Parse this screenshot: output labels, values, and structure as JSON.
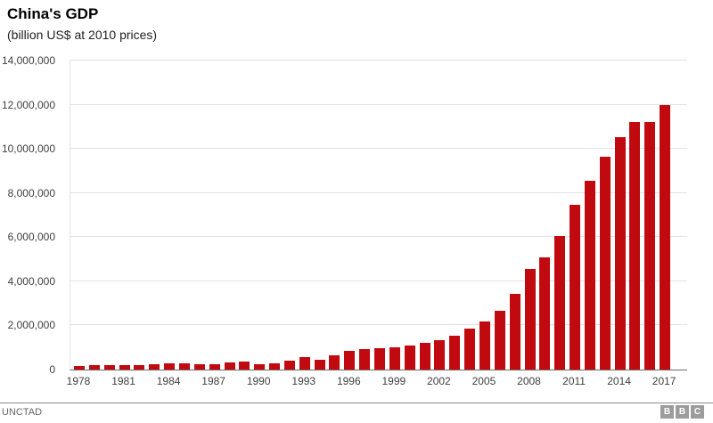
{
  "header": {
    "title": "China's GDP",
    "subtitle": "(billion US$ at 2010 prices)"
  },
  "footer": {
    "source": "UNCTAD",
    "logo_blocks": [
      "B",
      "B",
      "C"
    ]
  },
  "chart_data": {
    "type": "bar",
    "title": "China's GDP",
    "subtitle": "(billion US$ at 2010 prices)",
    "xlabel": "",
    "ylabel": "",
    "ylim": [
      0,
      14000000
    ],
    "ytick_interval": 2000000,
    "ytick_labels": [
      "0",
      "2,000,000",
      "4,000,000",
      "6,000,000",
      "8,000,000",
      "10,000,000",
      "12,000,000",
      "14,000,000"
    ],
    "xtick_years": [
      1978,
      1981,
      1984,
      1987,
      1990,
      1993,
      1996,
      1999,
      2002,
      2005,
      2008,
      2011,
      2014,
      2017
    ],
    "grid": true,
    "legend": "none",
    "bar_color": "#c00a10",
    "grid_color": "#e3e3e3",
    "axis_label_color": "#404040",
    "source": "UNCTAD",
    "categories": [
      1978,
      1979,
      1980,
      1981,
      1982,
      1983,
      1984,
      1985,
      1986,
      1987,
      1988,
      1989,
      1990,
      1991,
      1992,
      1993,
      1994,
      1995,
      1996,
      1997,
      1998,
      1999,
      2000,
      2001,
      2002,
      2003,
      2004,
      2005,
      2006,
      2007,
      2008,
      2009,
      2010,
      2011,
      2012,
      2013,
      2014,
      2015,
      2016,
      2017
    ],
    "values": [
      175000,
      200000,
      215000,
      205000,
      220000,
      240000,
      270000,
      275000,
      250000,
      225000,
      330000,
      375000,
      240000,
      280000,
      400000,
      560000,
      440000,
      660000,
      850000,
      930000,
      970000,
      1020000,
      1080000,
      1210000,
      1350000,
      1550000,
      1850000,
      2180000,
      2650000,
      3450000,
      4550000,
      5100000,
      6050000,
      7480000,
      8550000,
      9650000,
      10550000,
      11230000,
      11230000,
      12000000
    ]
  }
}
